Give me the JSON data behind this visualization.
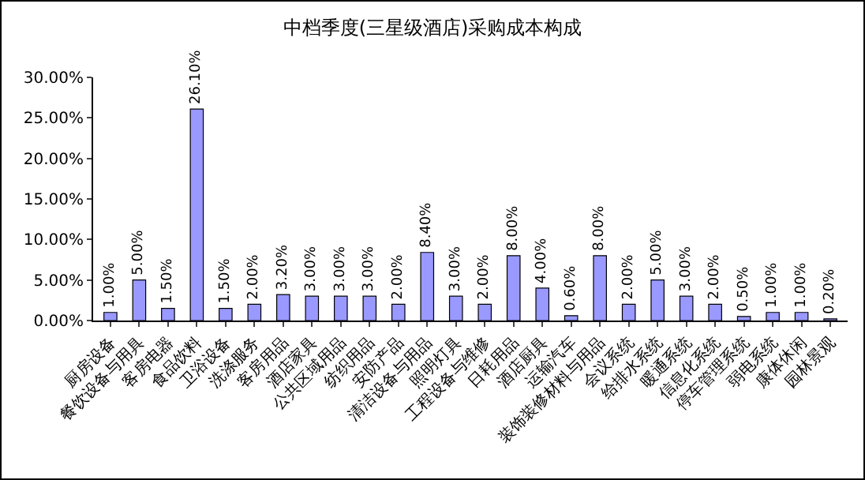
{
  "chart_data": {
    "type": "bar",
    "title": "中档季度(三星级酒店)采购成本构成",
    "categories": [
      "厨房设备",
      "餐饮设备与用具",
      "客房电器",
      "食品饮料",
      "卫浴设备",
      "洗涤服务",
      "客房用品",
      "酒店家具",
      "公共区域用品",
      "纺织用品",
      "安防产品",
      "清洁设备与用品",
      "照明灯具",
      "工程设备与维修",
      "日耗用品",
      "酒店厨具",
      "运输汽车",
      "装饰装修材料与用品",
      "会议系统",
      "给排水系统",
      "暖通系统",
      "信息化系统",
      "停车管理系统",
      "弱电系统",
      "康体休闲",
      "园林景观"
    ],
    "values": [
      1.0,
      5.0,
      1.5,
      26.1,
      1.5,
      2.0,
      3.2,
      3.0,
      3.0,
      3.0,
      2.0,
      8.4,
      3.0,
      2.0,
      8.0,
      4.0,
      0.6,
      8.0,
      2.0,
      5.0,
      3.0,
      2.0,
      0.5,
      1.0,
      1.0,
      0.2
    ],
    "value_labels": [
      "1.00%",
      "5.00%",
      "1.50%",
      "26.10%",
      "1.50%",
      "2.00%",
      "3.20%",
      "3.00%",
      "3.00%",
      "3.00%",
      "2.00%",
      "8.40%",
      "3.00%",
      "2.00%",
      "8.00%",
      "4.00%",
      "0.60%",
      "8.00%",
      "2.00%",
      "5.00%",
      "3.00%",
      "2.00%",
      "0.50%",
      "1.00%",
      "1.00%",
      "0.20%"
    ],
    "color": "#9999ff",
    "ylim": [
      0,
      30
    ],
    "yticks": [
      {
        "value": 0,
        "label": "0.00%"
      },
      {
        "value": 5,
        "label": "5.00%"
      },
      {
        "value": 10,
        "label": "10.00%"
      },
      {
        "value": 15,
        "label": "15.00%"
      },
      {
        "value": 20,
        "label": "20.00%"
      },
      {
        "value": 25,
        "label": "25.00%"
      },
      {
        "value": 30,
        "label": "30.00%"
      }
    ],
    "grid": false,
    "legend": false
  }
}
